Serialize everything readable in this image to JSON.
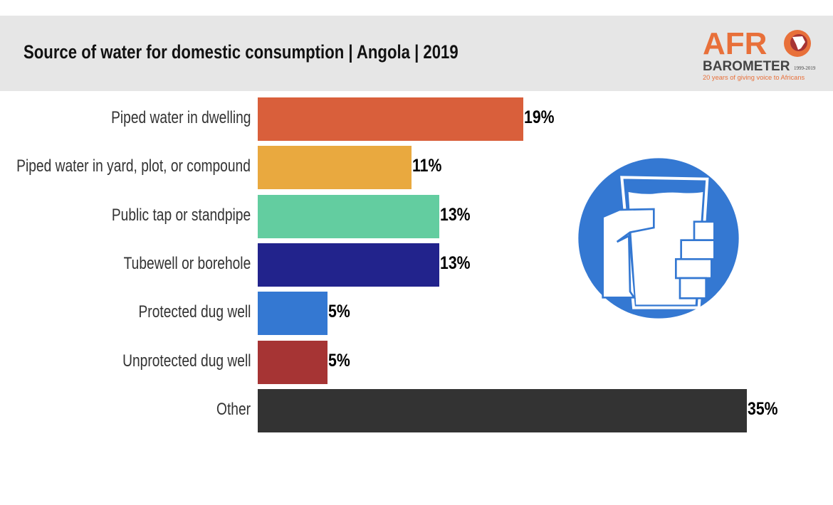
{
  "title": "Source of water for domestic consumption | Angola  |  2019",
  "logo": {
    "line1": "AFRO",
    "line2": "BAROMETER",
    "years": "1999-2019",
    "tagline": "20 years of giving voice to Africans"
  },
  "icon": "hand-holding-glass-of-water-icon",
  "chart_data": {
    "type": "bar",
    "orientation": "horizontal",
    "title": "Source of water for domestic consumption | Angola  |  2019",
    "categories": [
      "Piped water in dwelling",
      "Piped water in yard, plot, or compound",
      "Public tap or standpipe",
      "Tubewell or borehole",
      "Protected dug well",
      "Unprotected dug well",
      "Other"
    ],
    "values": [
      19,
      11,
      13,
      13,
      5,
      5,
      35
    ],
    "labels": [
      "19%",
      "11%",
      "13%",
      "13%",
      "5%",
      "5%",
      "35%"
    ],
    "colors": [
      "#d95f3b",
      "#e9a93f",
      "#63cda0",
      "#22238c",
      "#3478d2",
      "#a63434",
      "#333333"
    ],
    "grid": false
  }
}
